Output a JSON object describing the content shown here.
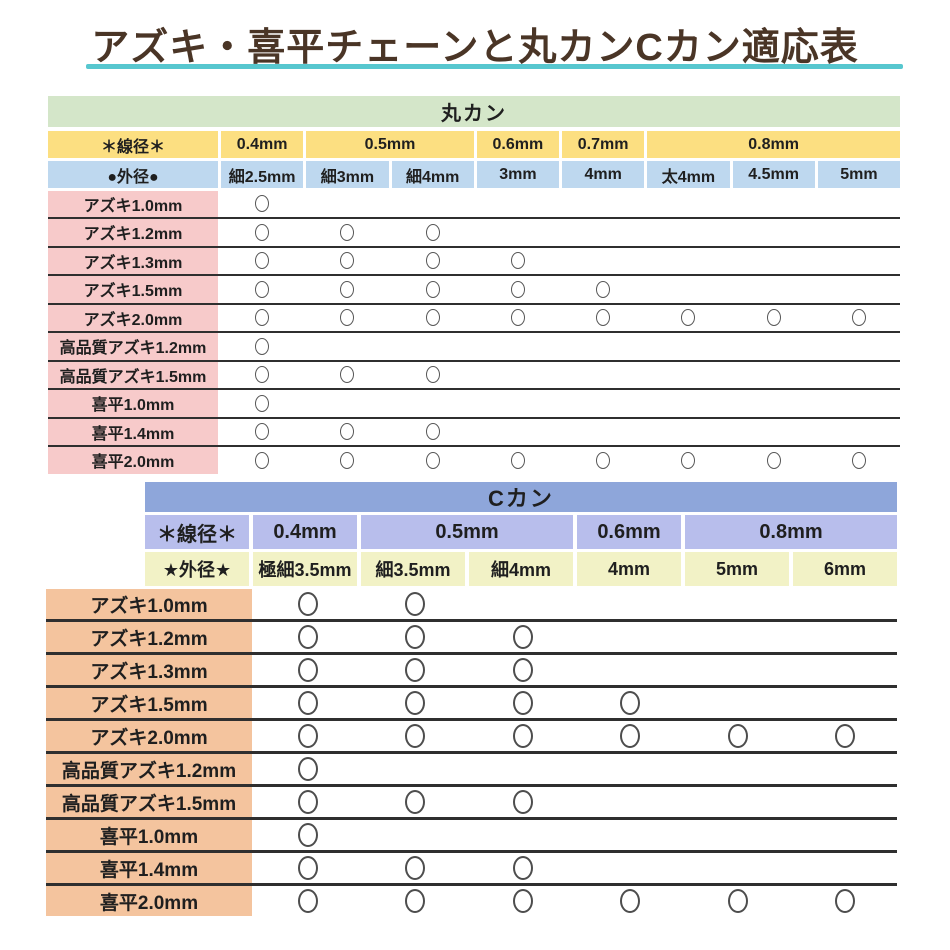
{
  "title": "アズキ・喜平チェーンと丸カンCカン適応表",
  "colors": {
    "title_text": "#4a3526",
    "title_underline": "#57c7cf",
    "maru_header_green": "#d4e6c9",
    "maru_wire_yellow": "#fcdf81",
    "maru_od_blue": "#bed8ef",
    "maru_row_pink": "#f7caca",
    "c_header_blue": "#8ea6da",
    "c_wire_lavender": "#b8beec",
    "c_od_cream": "#f2f2c6",
    "c_row_peach": "#f4c49e",
    "separator_line": "#2f2f2f",
    "circle_mark": "#555555"
  },
  "mark_symbol": "○",
  "chart_data": [
    {
      "type": "table",
      "title": "丸カン",
      "wire_header": "＊線径＊",
      "outer_header": "●外径●",
      "wire_groups": [
        {
          "label": "0.4mm",
          "span": 1
        },
        {
          "label": "0.5mm",
          "span": 2
        },
        {
          "label": "0.6mm",
          "span": 1
        },
        {
          "label": "0.7mm",
          "span": 1
        },
        {
          "label": "0.8mm",
          "span": 3
        }
      ],
      "columns": [
        "細2.5mm",
        "細3mm",
        "細4mm",
        "3mm",
        "4mm",
        "太4mm",
        "4.5mm",
        "5mm"
      ],
      "rows": [
        {
          "label": "アズキ1.0mm",
          "compatible": [
            1,
            0,
            0,
            0,
            0,
            0,
            0,
            0
          ]
        },
        {
          "label": "アズキ1.2mm",
          "compatible": [
            1,
            1,
            1,
            0,
            0,
            0,
            0,
            0
          ]
        },
        {
          "label": "アズキ1.3mm",
          "compatible": [
            1,
            1,
            1,
            1,
            0,
            0,
            0,
            0
          ]
        },
        {
          "label": "アズキ1.5mm",
          "compatible": [
            1,
            1,
            1,
            1,
            1,
            0,
            0,
            0
          ]
        },
        {
          "label": "アズキ2.0mm",
          "compatible": [
            1,
            1,
            1,
            1,
            1,
            1,
            1,
            1
          ]
        },
        {
          "label": "高品質アズキ1.2mm",
          "compatible": [
            1,
            0,
            0,
            0,
            0,
            0,
            0,
            0
          ]
        },
        {
          "label": "高品質アズキ1.5mm",
          "compatible": [
            1,
            1,
            1,
            0,
            0,
            0,
            0,
            0
          ]
        },
        {
          "label": "喜平1.0mm",
          "compatible": [
            1,
            0,
            0,
            0,
            0,
            0,
            0,
            0
          ]
        },
        {
          "label": "喜平1.4mm",
          "compatible": [
            1,
            1,
            1,
            0,
            0,
            0,
            0,
            0
          ]
        },
        {
          "label": "喜平2.0mm",
          "compatible": [
            1,
            1,
            1,
            1,
            1,
            1,
            1,
            1
          ]
        }
      ]
    },
    {
      "type": "table",
      "title": "Cカン",
      "wire_header": "＊線径＊",
      "outer_header": "★外径★",
      "wire_groups": [
        {
          "label": "0.4mm",
          "span": 1
        },
        {
          "label": "0.5mm",
          "span": 2
        },
        {
          "label": "0.6mm",
          "span": 1
        },
        {
          "label": "0.8mm",
          "span": 2
        }
      ],
      "columns": [
        "極細3.5mm",
        "細3.5mm",
        "細4mm",
        "4mm",
        "5mm",
        "6mm"
      ],
      "rows": [
        {
          "label": "アズキ1.0mm",
          "compatible": [
            1,
            1,
            0,
            0,
            0,
            0
          ]
        },
        {
          "label": "アズキ1.2mm",
          "compatible": [
            1,
            1,
            1,
            0,
            0,
            0
          ]
        },
        {
          "label": "アズキ1.3mm",
          "compatible": [
            1,
            1,
            1,
            0,
            0,
            0
          ]
        },
        {
          "label": "アズキ1.5mm",
          "compatible": [
            1,
            1,
            1,
            1,
            0,
            0
          ]
        },
        {
          "label": "アズキ2.0mm",
          "compatible": [
            1,
            1,
            1,
            1,
            1,
            1
          ]
        },
        {
          "label": "高品質アズキ1.2mm",
          "compatible": [
            1,
            0,
            0,
            0,
            0,
            0
          ]
        },
        {
          "label": "高品質アズキ1.5mm",
          "compatible": [
            1,
            1,
            1,
            0,
            0,
            0
          ]
        },
        {
          "label": "喜平1.0mm",
          "compatible": [
            1,
            0,
            0,
            0,
            0,
            0
          ]
        },
        {
          "label": "喜平1.4mm",
          "compatible": [
            1,
            1,
            1,
            0,
            0,
            0
          ]
        },
        {
          "label": "喜平2.0mm",
          "compatible": [
            1,
            1,
            1,
            1,
            1,
            1
          ]
        }
      ]
    }
  ]
}
